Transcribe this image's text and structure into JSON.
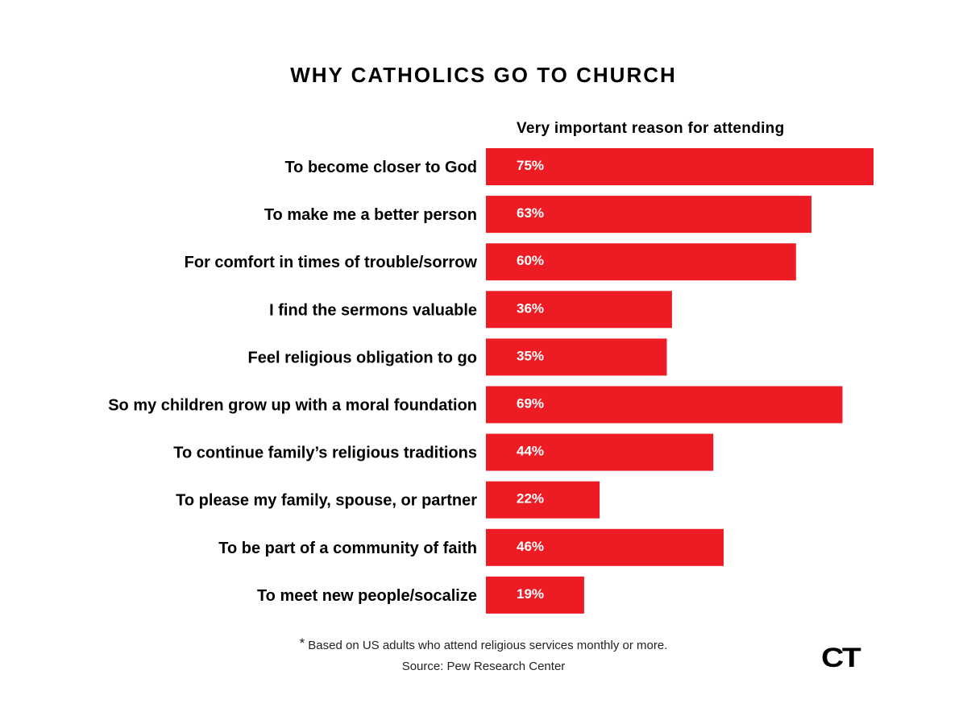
{
  "chart_data": {
    "type": "bar",
    "orientation": "horizontal",
    "title": "WHY CATHOLICS GO TO CHURCH",
    "subtitle": "Very important reason for attending",
    "categories": [
      "To become closer to God",
      "To make me a better person",
      "For comfort in times of trouble/sorrow",
      "I find the sermons valuable",
      "Feel religious obligation to go",
      "So my children grow up with a moral foundation",
      "To continue family’s religious traditions",
      "To please my family, spouse, or partner",
      "To be part of a community of faith",
      "To meet new people/socalize"
    ],
    "values": [
      75,
      63,
      60,
      36,
      35,
      69,
      44,
      22,
      46,
      19
    ],
    "value_labels": [
      "75%",
      "63%",
      "60%",
      "36%",
      "35%",
      "69%",
      "44%",
      "22%",
      "46%",
      "19%"
    ],
    "unit": "%",
    "bar_color": "#ed1c24",
    "grid": false,
    "legend": "none"
  },
  "footnote": {
    "star": "*",
    "text": "Based on US adults who attend religious services monthly or more."
  },
  "source": "Source: Pew Research Center",
  "logo_text": "CT"
}
